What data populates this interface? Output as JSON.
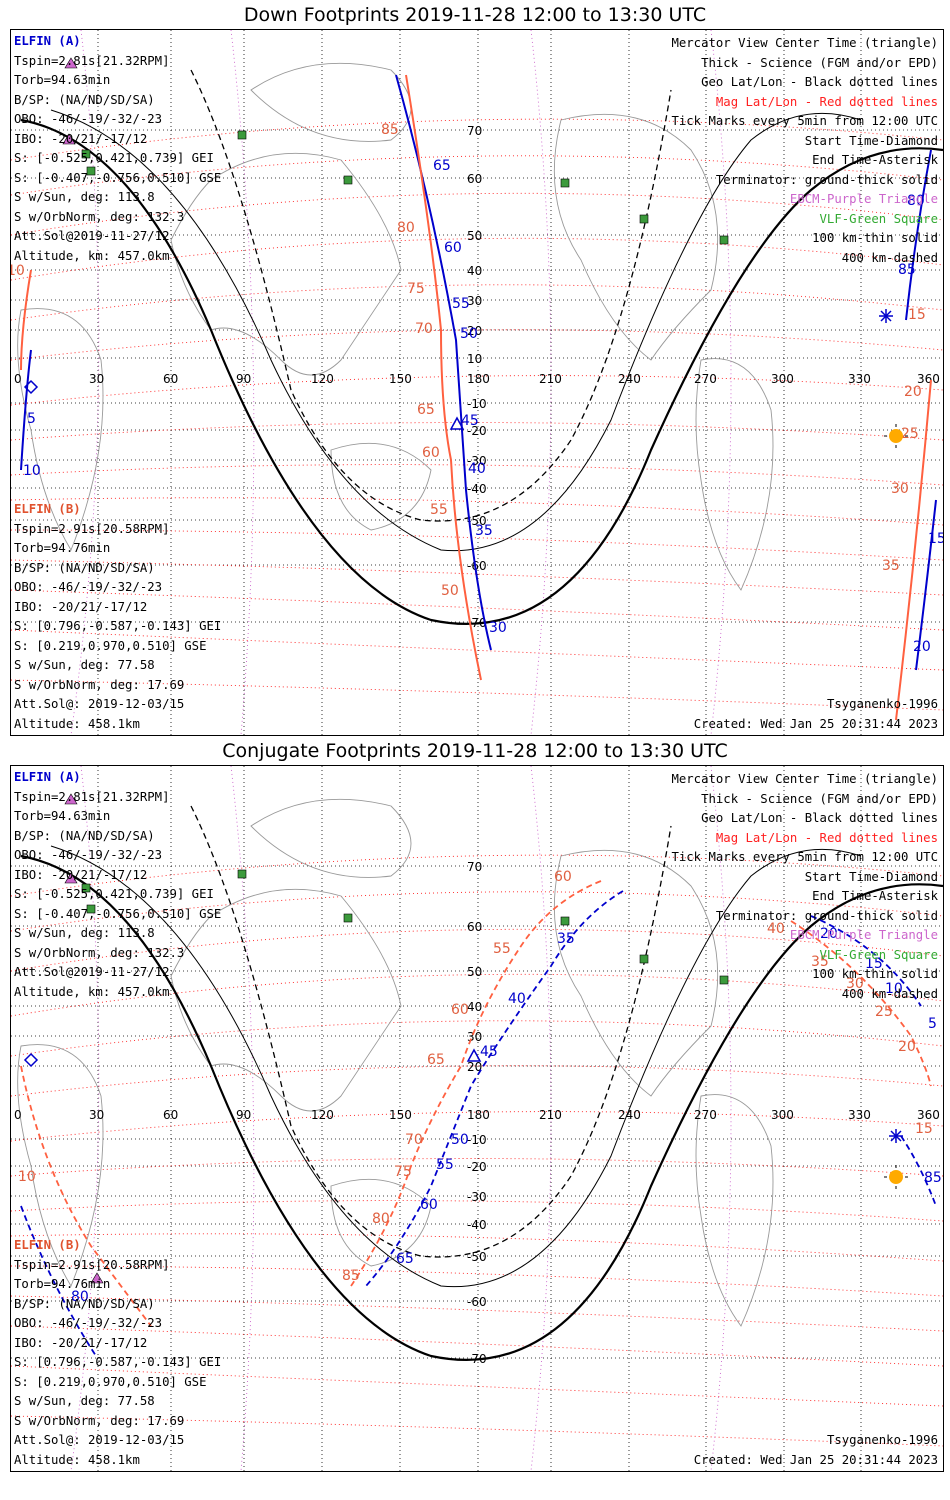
{
  "colors": {
    "mag_lat_lon": "#ff2020",
    "elfin_a": "#0000cc",
    "elfin_b": "#ff6040",
    "vlf": "#3c9a3c",
    "ebcm": "#cc66cc",
    "sun": "#ffaa00",
    "geo_grid": "#000000"
  },
  "panels": [
    {
      "title": "Down Footprints 2019-11-28 12:00 to 13:30 UTC",
      "elfin_a": {
        "header": "ELFIN (A)",
        "lines": [
          "Tspin=2.81s[21.32RPM]",
          "Torb=94.63min",
          "B/SP: (NA/ND/SD/SA)",
          "OBO: -46/-19/-32/-23",
          "IBO: -20/21/-17/12",
          "S: [-0.525,0.421,0.739] GEI",
          "S: [-0.407,-0.756,0.510] GSE",
          "S w/Sun, deg: 113.8",
          "S w/OrbNorm, deg: 132.3",
          "Att.Sol@2019-11-27/12",
          "Altitude, km: 457.0km"
        ]
      },
      "elfin_b": {
        "header": "ELFIN (B)",
        "lines": [
          "Tspin=2.91s[20.58RPM]",
          "Torb=94.76min",
          "B/SP: (NA/ND/SD/SA)",
          "OBO: -46/-19/-32/-23",
          "IBO: -20/21/-17/12",
          "S: [0.796,-0.587,-0.143] GEI",
          "S: [0.219,0.970,0.510] GSE",
          "S w/Sun, deg: 77.58",
          "S w/OrbNorm, deg: 17.69",
          "Att.Sol@: 2019-12-03/15",
          "Altitude: 458.1km"
        ]
      },
      "legend": [
        "Mercator View Center Time (triangle)",
        "Thick - Science (FGM and/or EPD)",
        "Geo Lat/Lon - Black dotted lines",
        "Mag Lat/Lon - Red dotted lines",
        "Tick Marks every 5min from 12:00 UTC",
        "Start Time-Diamond",
        "End Time-Asterisk",
        "Terminator: ground-thick solid",
        "EBCM-Purple Triangle",
        "VLF-Green Square",
        "100 km-thin solid",
        "400 km-dashed"
      ],
      "model": "Tsyganenko-1996",
      "created": "Created: Wed Jan 25 20:31:44 2023",
      "lon_labels": [
        "0",
        "30",
        "60",
        "90",
        "120",
        "150",
        "180",
        "210",
        "240",
        "270",
        "300",
        "330",
        "360"
      ],
      "lat_labels": [
        "70",
        "60",
        "50",
        "40",
        "30",
        "20",
        "10",
        "-10",
        "-20",
        "-30",
        "-40",
        "-50",
        "-60",
        "-70"
      ],
      "mag_labels_a": [
        "65",
        "60",
        "55",
        "50",
        "45",
        "40",
        "35",
        "30",
        "80",
        "85",
        "5",
        "10",
        "15",
        "20"
      ],
      "mag_labels_b": [
        "85",
        "80",
        "75",
        "70",
        "65",
        "60",
        "55",
        "50",
        "10",
        "15",
        "20",
        "25",
        "30",
        "35"
      ]
    },
    {
      "title": "Conjugate Footprints 2019-11-28 12:00 to 13:30 UTC",
      "elfin_a": {
        "header": "ELFIN (A)",
        "lines": [
          "Tspin=2.81s[21.32RPM]",
          "Torb=94.63min",
          "B/SP: (NA/ND/SD/SA)",
          "OBO: -46/-19/-32/-23",
          "IBO: -20/21/-17/12",
          "S: [-0.525,0.421,0.739] GEI",
          "S: [-0.407,-0.756,0.510] GSE",
          "S w/Sun, deg: 113.8",
          "S w/OrbNorm, deg: 132.3",
          "Att.Sol@2019-11-27/12",
          "Altitude, km: 457.0km"
        ]
      },
      "elfin_b": {
        "header": "ELFIN (B)",
        "lines": [
          "Tspin=2.91s[20.58RPM]",
          "Torb=94.76min",
          "B/SP: (NA/ND/SD/SA)",
          "OBO: -46/-19/-32/-23",
          "IBO: -20/21/-17/12",
          "S: [0.796,-0.587,-0.143] GEI",
          "S: [0.219,0.970,0.510] GSE",
          "S w/Sun, deg: 77.58",
          "S w/OrbNorm, deg: 17.69",
          "Att.Sol@: 2019-12-03/15",
          "Altitude: 458.1km"
        ]
      },
      "legend": [
        "Mercator View Center Time (triangle)",
        "Thick - Science (FGM and/or EPD)",
        "Geo Lat/Lon - Black dotted lines",
        "Mag Lat/Lon - Red dotted lines",
        "Tick Marks every 5min from 12:00 UTC",
        "Start Time-Diamond",
        "End Time-Asterisk",
        "Terminator: ground-thick solid",
        "EBCM-Purple Triangle",
        "VLF-Green Square",
        "100 km-thin solid",
        "400 km-dashed"
      ],
      "model": "Tsyganenko-1996",
      "created": "Created: Wed Jan 25 20:31:44 2023",
      "lon_labels": [
        "0",
        "30",
        "60",
        "90",
        "120",
        "150",
        "180",
        "210",
        "240",
        "270",
        "300",
        "330",
        "360"
      ],
      "lat_labels": [
        "70",
        "60",
        "50",
        "40",
        "30",
        "20",
        "-10",
        "-20",
        "-30",
        "-40",
        "-50",
        "-60",
        "-70"
      ],
      "mag_labels_a": [
        "35",
        "40",
        "45",
        "50",
        "55",
        "60",
        "65",
        "80",
        "20",
        "15",
        "10",
        "5",
        "85"
      ],
      "mag_labels_b": [
        "60",
        "55",
        "60",
        "65",
        "70",
        "75",
        "80",
        "85",
        "10",
        "40",
        "35",
        "30",
        "25",
        "20",
        "15"
      ]
    }
  ]
}
